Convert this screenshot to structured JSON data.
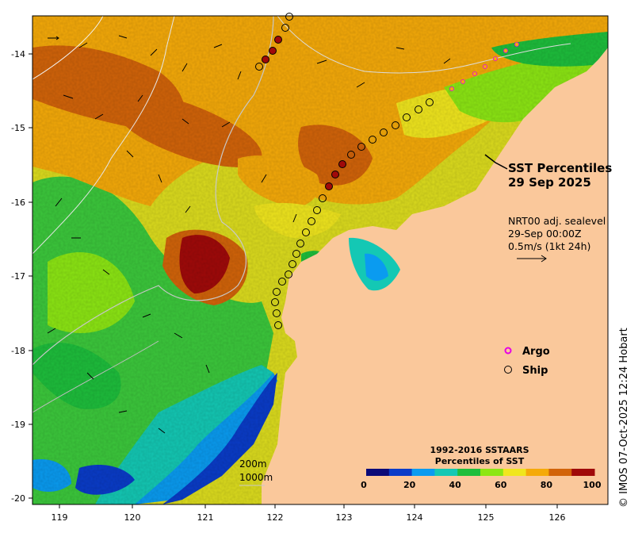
{
  "title": {
    "line1": "SST Percentiles",
    "line2": "29 Sep 2025"
  },
  "current_info": {
    "line1": "NRT00 adj. sealevel",
    "line2": "29-Sep 00:00Z",
    "line3": "0.5m/s (1kt 24h)"
  },
  "legend": {
    "argo_label": "Argo",
    "ship_label": "Ship",
    "argo_icon": "magenta-circle-icon",
    "ship_icon": "open-circle-icon"
  },
  "isobaths": {
    "label_200": "200m",
    "label_1000": "1000m"
  },
  "colorbar": {
    "title_line1": "1992-2016 SSTAARS",
    "title_line2": "Percentiles of SST",
    "ticks": [
      "0",
      "20",
      "40",
      "60",
      "80",
      "100"
    ],
    "colors": [
      "#0a0a78",
      "#0a3cc8",
      "#0a9bf0",
      "#14c8b4",
      "#1ebe3c",
      "#8ce614",
      "#f0e61e",
      "#f5aa0a",
      "#d2640a",
      "#a00a0a"
    ]
  },
  "axes": {
    "x_ticks": [
      "119",
      "120",
      "121",
      "122",
      "123",
      "124",
      "125",
      "126"
    ],
    "y_ticks": [
      "-14",
      "-15",
      "-16",
      "-17",
      "-18",
      "-19",
      "-20"
    ]
  },
  "credit": "© IMOS 07-Oct-2025 12:24 Hobart",
  "colors": {
    "land": "#fac89b",
    "ocean_mid": "#dcdc1e",
    "argo": "#e600e6",
    "ship_hot": "#a00a0a"
  }
}
